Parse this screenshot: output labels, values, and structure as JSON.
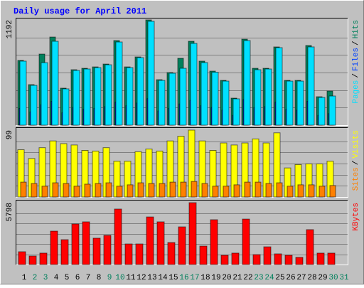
{
  "chart_data": [
    {
      "type": "bar",
      "title": "Daily usage for April 2011",
      "ylim": [
        0,
        1192
      ],
      "yticks": [
        1192
      ],
      "legend_separator": "/",
      "series": [
        {
          "name": "Pages",
          "color": "#00E0FF",
          "values": [
            725,
            451,
            708,
            950,
            411,
            620,
            636,
            652,
            684,
            942,
            652,
            765,
            1176,
            507,
            588,
            644,
            926,
            709,
            600,
            499,
            298,
            958,
            628,
            636,
            878,
            499,
            499,
            886,
            314,
            330,
            null
          ]
        },
        {
          "name": "Files",
          "color": "#0040FF",
          "values": [
            190,
            150,
            230,
            270,
            140,
            200,
            180,
            190,
            210,
            260,
            220,
            250,
            300,
            160,
            190,
            240,
            280,
            220,
            200,
            170,
            110,
            290,
            200,
            210,
            260,
            180,
            170,
            270,
            110,
            130,
            null
          ]
        },
        {
          "name": "Hits",
          "color": "#00805C",
          "values": [
            733,
            459,
            805,
            998,
            419,
            628,
            644,
            660,
            692,
            958,
            660,
            773,
            1192,
            515,
            596,
            757,
            950,
            725,
            612,
            507,
            306,
            974,
            644,
            644,
            886,
            507,
            507,
            902,
            322,
            386,
            null
          ]
        }
      ]
    },
    {
      "type": "bar",
      "ylim": [
        0,
        99
      ],
      "yticks": [
        99
      ],
      "legend_separator": "/",
      "series": [
        {
          "name": "Sites",
          "color": "#FF8000",
          "values": [
            22,
            20,
            16,
            21,
            20,
            16,
            19,
            20,
            21,
            16,
            18,
            21,
            20,
            20,
            22,
            22,
            23,
            20,
            16,
            16,
            18,
            22,
            22,
            20,
            21,
            16,
            18,
            18,
            16,
            17,
            null
          ]
        },
        {
          "name": "Visits",
          "color": "#FFFF00",
          "values": [
            70,
            57,
            73,
            83,
            79,
            77,
            69,
            68,
            73,
            53,
            53,
            67,
            71,
            68,
            83,
            90,
            99,
            83,
            69,
            80,
            77,
            80,
            86,
            80,
            95,
            43,
            48,
            49,
            49,
            53,
            null
          ]
        }
      ]
    },
    {
      "type": "bar",
      "ylim": [
        0,
        5798
      ],
      "yticks": [
        5798
      ],
      "categories": [
        "1",
        "2",
        "3",
        "4",
        "5",
        "6",
        "7",
        "8",
        "9",
        "10",
        "11",
        "12",
        "13",
        "14",
        "15",
        "16",
        "17",
        "18",
        "19",
        "20",
        "21",
        "22",
        "23",
        "24",
        "25",
        "26",
        "27",
        "28",
        "29",
        "30",
        "31"
      ],
      "label_color": "#000000",
      "weekend_color": "#00805C",
      "weekends": [
        2,
        3,
        9,
        10,
        16,
        17,
        23,
        24,
        30,
        31
      ],
      "series": [
        {
          "name": "KBytes",
          "color": "#FF0000",
          "values": [
            1200,
            800,
            1070,
            3130,
            2330,
            3800,
            4000,
            2470,
            2730,
            5200,
            1930,
            1930,
            4460,
            4000,
            2060,
            3530,
            5798,
            1730,
            4200,
            870,
            1070,
            4260,
            930,
            1660,
            1000,
            870,
            670,
            3270,
            1070,
            1070,
            null
          ]
        }
      ]
    }
  ]
}
